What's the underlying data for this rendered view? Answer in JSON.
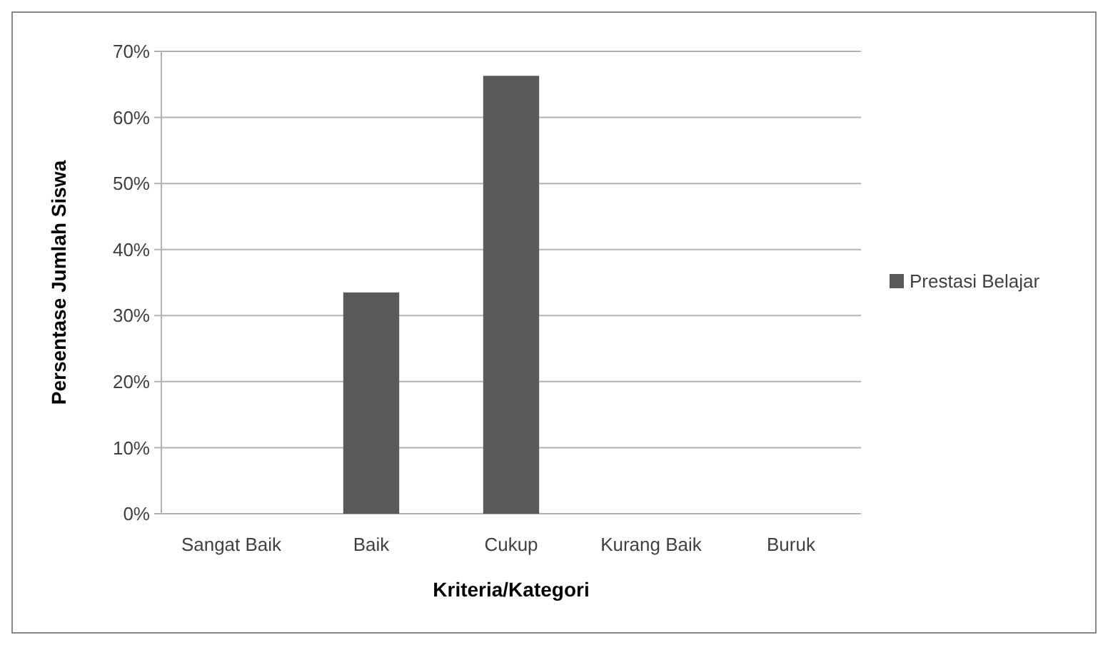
{
  "chart_data": {
    "type": "bar",
    "xlabel": "Kriteria/Kategori",
    "ylabel": "Persentase Jumlah Siswa",
    "categories": [
      "Sangat Baik",
      "Baik",
      "Cukup",
      "Kurang Baik",
      "Buruk"
    ],
    "series": [
      {
        "name": "Prestasi Belajar",
        "color": "#595959",
        "values": [
          0,
          33.5,
          66.3,
          0,
          0
        ]
      }
    ],
    "ylim": [
      0,
      70
    ],
    "yticks": [
      {
        "value": 0,
        "label": "0%"
      },
      {
        "value": 10,
        "label": "10%"
      },
      {
        "value": 20,
        "label": "20%"
      },
      {
        "value": 30,
        "label": "30%"
      },
      {
        "value": 40,
        "label": "40%"
      },
      {
        "value": 50,
        "label": "50%"
      },
      {
        "value": 60,
        "label": "60%"
      },
      {
        "value": 70,
        "label": "70%"
      }
    ],
    "grid": "y",
    "legend": "right"
  }
}
